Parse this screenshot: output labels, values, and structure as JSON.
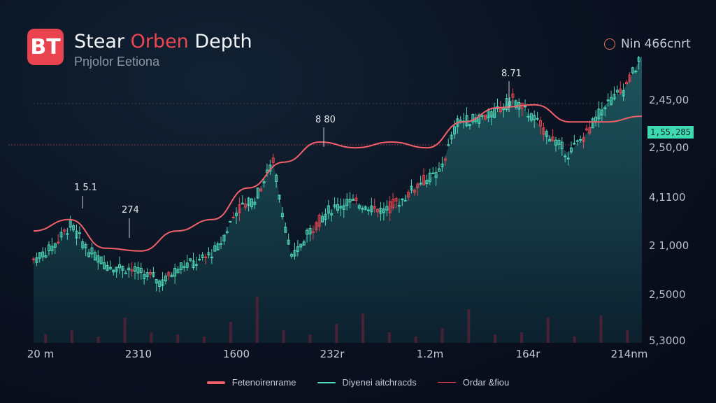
{
  "header": {
    "logo_text": "BT",
    "title_part1": "Stear",
    "title_accent": "Orben",
    "title_part2": "Depth",
    "subtitle": "Pnjolor Eetiona",
    "top_right": "Nin 466cnrt"
  },
  "colors": {
    "up": "#4fd8b8",
    "down": "#e8434f",
    "ma": "#f0606a",
    "area_top": "#1f5a62",
    "background": "#0a1120",
    "badge": "#3fd8b0"
  },
  "chart_data": {
    "type": "line",
    "title": "",
    "x_tick_labels": [
      "20 m",
      "2310",
      "1600",
      "232r",
      "1.2m",
      "164r",
      "214nm"
    ],
    "y_tick_labels": [
      "2,45,00",
      "2,50,00",
      "4,1100",
      "2 1,000",
      "2,5000",
      "5,3000"
    ],
    "ylim": [
      0,
      100
    ],
    "grid": "two dotted horizontal lines",
    "legend": "bottom-center",
    "price": [
      29,
      33,
      41,
      32,
      27,
      26,
      24,
      21,
      27,
      28,
      33,
      46,
      50,
      63,
      29,
      39,
      46,
      49,
      48,
      46,
      50,
      56,
      59,
      77,
      78,
      80,
      85,
      79,
      72,
      66,
      73,
      83,
      88,
      100
    ],
    "moving_average": [
      39,
      43,
      33,
      32,
      39,
      43,
      54,
      63,
      70,
      68,
      70,
      68,
      77,
      82,
      83,
      77,
      77,
      79
    ],
    "volume": [
      4,
      6,
      3,
      12,
      5,
      4,
      3,
      10,
      22,
      6,
      4,
      9,
      14,
      5,
      3,
      7,
      16,
      4,
      5,
      12,
      3,
      13,
      6
    ],
    "current_price_label": "1,55,285",
    "annotations": [
      "1 5.1",
      "274",
      "8 80",
      "8.71"
    ],
    "series_legend": [
      {
        "name": "Fetenoirenrame",
        "color": "#f0606a"
      },
      {
        "name": "Diyenei aitchracds",
        "color": "#4fd8b8"
      },
      {
        "name": "Ordar &fiou",
        "color": "#e8434f"
      }
    ]
  }
}
